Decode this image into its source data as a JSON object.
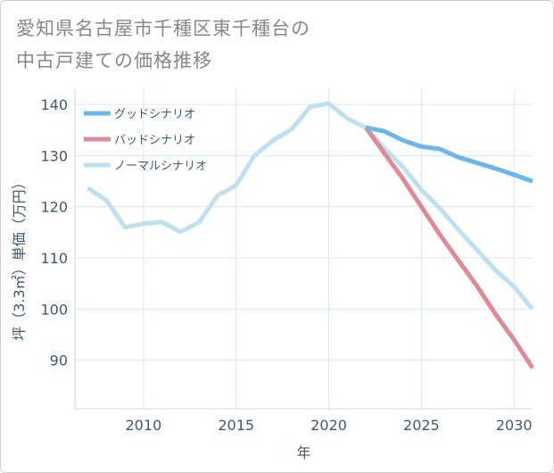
{
  "title": "愛知県名古屋市千種区東千種台の\n中古戸建ての価格推移",
  "chart_data": {
    "type": "line",
    "xlabel": "年",
    "ylabel": "坪（3.3㎡）単価（万円）",
    "xlim": [
      2006.3,
      2031
    ],
    "ylim": [
      80.5,
      143
    ],
    "xticks": [
      2010,
      2015,
      2020,
      2025,
      2030
    ],
    "yticks": [
      90,
      100,
      110,
      120,
      130,
      140
    ],
    "grid": true,
    "legend_position": "top-left",
    "series": [
      {
        "name": "グッドシナリオ",
        "color": "#6cb6ea",
        "x": [
          2022,
          2023,
          2024,
          2025,
          2026,
          2027,
          2028,
          2029,
          2030,
          2031
        ],
        "y": [
          135.5,
          134.8,
          133.0,
          131.8,
          131.3,
          129.7,
          128.6,
          127.5,
          126.3,
          125.0
        ]
      },
      {
        "name": "バッドシナリオ",
        "color": "#df8a94",
        "x": [
          2022,
          2023,
          2024,
          2025,
          2026,
          2027,
          2028,
          2029,
          2030,
          2031
        ],
        "y": [
          135.5,
          130.5,
          125.5,
          120.0,
          114.5,
          109.5,
          104.5,
          99.0,
          94.0,
          88.5
        ]
      },
      {
        "name": "ノーマルシナリオ",
        "color": "#bfe0ee",
        "x": [
          2007,
          2008,
          2009,
          2010,
          2011,
          2012,
          2013,
          2014,
          2015,
          2016,
          2017,
          2018,
          2019,
          2020,
          2021,
          2022,
          2023,
          2024,
          2025,
          2026,
          2027,
          2028,
          2029,
          2030,
          2031
        ],
        "y": [
          123.7,
          121.3,
          116.0,
          116.7,
          117.0,
          115.1,
          117.0,
          122.2,
          124.2,
          130.1,
          133.0,
          135.2,
          139.6,
          140.2,
          137.3,
          135.5,
          131.5,
          127.8,
          123.3,
          119.7,
          115.5,
          111.6,
          107.6,
          104.4,
          100.0
        ]
      }
    ]
  }
}
